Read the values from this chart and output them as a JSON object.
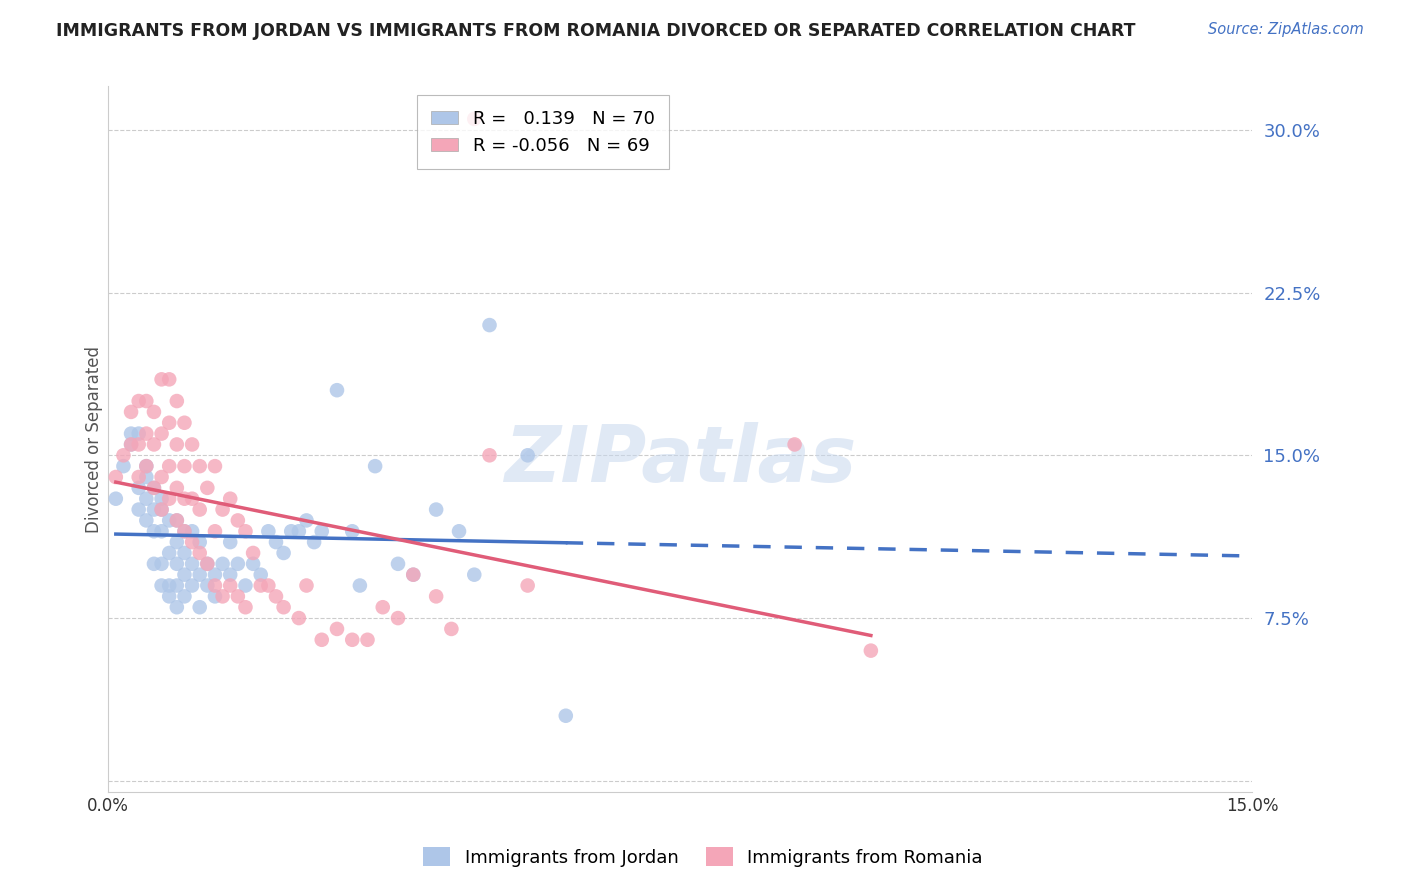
{
  "title": "IMMIGRANTS FROM JORDAN VS IMMIGRANTS FROM ROMANIA DIVORCED OR SEPARATED CORRELATION CHART",
  "source": "Source: ZipAtlas.com",
  "ylabel": "Divorced or Separated",
  "xlim": [
    0.0,
    0.15
  ],
  "ylim": [
    -0.005,
    0.32
  ],
  "yticks": [
    0.0,
    0.075,
    0.15,
    0.225,
    0.3
  ],
  "ytick_labels": [
    "",
    "7.5%",
    "15.0%",
    "22.5%",
    "30.0%"
  ],
  "xticks": [
    0.0,
    0.025,
    0.05,
    0.075,
    0.1,
    0.125,
    0.15
  ],
  "xtick_labels": [
    "0.0%",
    "",
    "",
    "",
    "",
    "",
    "15.0%"
  ],
  "grid_color": "#cccccc",
  "background_color": "#ffffff",
  "jordan_color": "#aec6e8",
  "romania_color": "#f4a6b8",
  "jordan_line_color": "#4472c4",
  "romania_line_color": "#e05c78",
  "jordan_R": 0.139,
  "jordan_N": 70,
  "romania_R": -0.056,
  "romania_N": 69,
  "legend_label_jordan": "Immigrants from Jordan",
  "legend_label_romania": "Immigrants from Romania",
  "watermark": "ZIPatlas",
  "jordan_scatter_x": [
    0.001,
    0.002,
    0.003,
    0.003,
    0.004,
    0.004,
    0.004,
    0.005,
    0.005,
    0.005,
    0.005,
    0.006,
    0.006,
    0.006,
    0.006,
    0.007,
    0.007,
    0.007,
    0.007,
    0.007,
    0.008,
    0.008,
    0.008,
    0.008,
    0.009,
    0.009,
    0.009,
    0.009,
    0.009,
    0.01,
    0.01,
    0.01,
    0.01,
    0.011,
    0.011,
    0.011,
    0.012,
    0.012,
    0.012,
    0.013,
    0.013,
    0.014,
    0.014,
    0.015,
    0.016,
    0.016,
    0.017,
    0.018,
    0.019,
    0.02,
    0.021,
    0.022,
    0.023,
    0.024,
    0.025,
    0.026,
    0.027,
    0.028,
    0.03,
    0.032,
    0.033,
    0.035,
    0.038,
    0.04,
    0.043,
    0.046,
    0.048,
    0.05,
    0.055,
    0.06
  ],
  "jordan_scatter_y": [
    0.13,
    0.145,
    0.155,
    0.16,
    0.125,
    0.135,
    0.16,
    0.12,
    0.13,
    0.14,
    0.145,
    0.1,
    0.115,
    0.125,
    0.135,
    0.09,
    0.1,
    0.115,
    0.125,
    0.13,
    0.085,
    0.09,
    0.105,
    0.12,
    0.08,
    0.09,
    0.1,
    0.11,
    0.12,
    0.085,
    0.095,
    0.105,
    0.115,
    0.09,
    0.1,
    0.115,
    0.08,
    0.095,
    0.11,
    0.09,
    0.1,
    0.085,
    0.095,
    0.1,
    0.095,
    0.11,
    0.1,
    0.09,
    0.1,
    0.095,
    0.115,
    0.11,
    0.105,
    0.115,
    0.115,
    0.12,
    0.11,
    0.115,
    0.18,
    0.115,
    0.09,
    0.145,
    0.1,
    0.095,
    0.125,
    0.115,
    0.095,
    0.21,
    0.15,
    0.03
  ],
  "romania_scatter_x": [
    0.001,
    0.002,
    0.003,
    0.003,
    0.004,
    0.004,
    0.004,
    0.005,
    0.005,
    0.005,
    0.006,
    0.006,
    0.006,
    0.007,
    0.007,
    0.007,
    0.007,
    0.008,
    0.008,
    0.008,
    0.008,
    0.009,
    0.009,
    0.009,
    0.009,
    0.01,
    0.01,
    0.01,
    0.01,
    0.011,
    0.011,
    0.011,
    0.012,
    0.012,
    0.012,
    0.013,
    0.013,
    0.014,
    0.014,
    0.014,
    0.015,
    0.015,
    0.016,
    0.016,
    0.017,
    0.017,
    0.018,
    0.018,
    0.019,
    0.02,
    0.021,
    0.022,
    0.023,
    0.025,
    0.026,
    0.028,
    0.03,
    0.032,
    0.034,
    0.036,
    0.038,
    0.04,
    0.043,
    0.045,
    0.048,
    0.05,
    0.055,
    0.09,
    0.1
  ],
  "romania_scatter_y": [
    0.14,
    0.15,
    0.155,
    0.17,
    0.14,
    0.155,
    0.175,
    0.145,
    0.16,
    0.175,
    0.135,
    0.155,
    0.17,
    0.125,
    0.14,
    0.16,
    0.185,
    0.13,
    0.145,
    0.165,
    0.185,
    0.12,
    0.135,
    0.155,
    0.175,
    0.115,
    0.13,
    0.145,
    0.165,
    0.11,
    0.13,
    0.155,
    0.105,
    0.125,
    0.145,
    0.1,
    0.135,
    0.09,
    0.115,
    0.145,
    0.085,
    0.125,
    0.09,
    0.13,
    0.085,
    0.12,
    0.08,
    0.115,
    0.105,
    0.09,
    0.09,
    0.085,
    0.08,
    0.075,
    0.09,
    0.065,
    0.07,
    0.065,
    0.065,
    0.08,
    0.075,
    0.095,
    0.085,
    0.07,
    0.305,
    0.15,
    0.09,
    0.155,
    0.06
  ]
}
